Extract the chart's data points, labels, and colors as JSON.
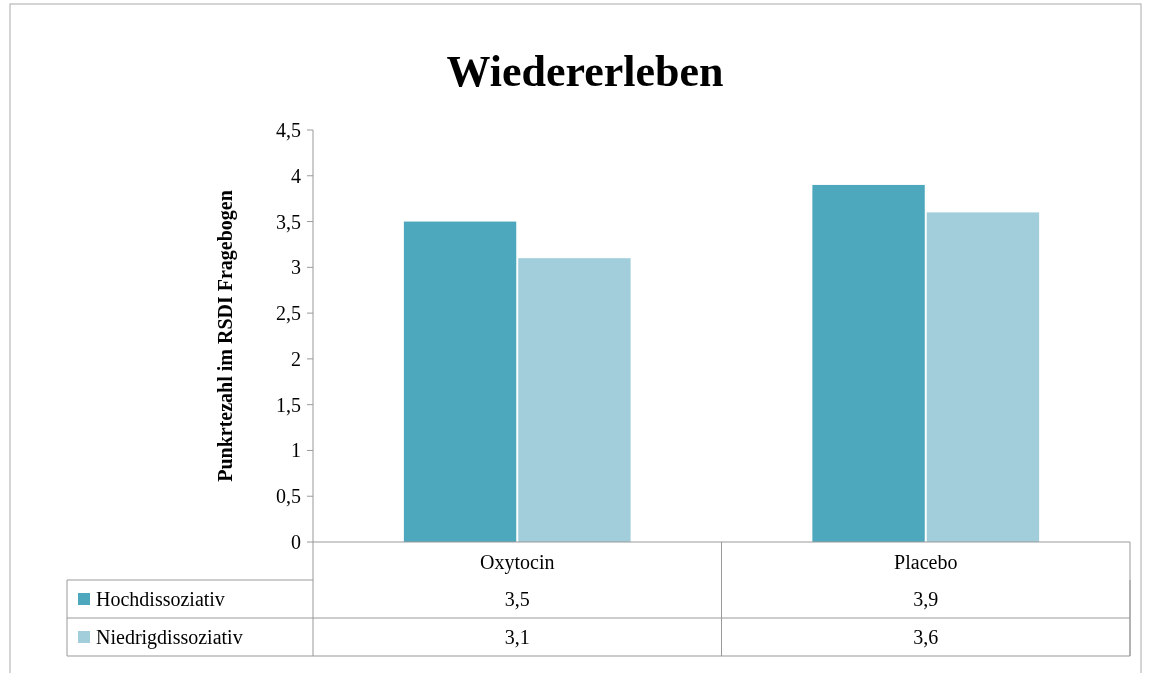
{
  "chart_data": {
    "type": "bar",
    "title": "Wiedererleben",
    "ylabel": "Punkrtezahl im RSDI Fragebogen",
    "categories": [
      "Oxytocin",
      "Placebo"
    ],
    "series": [
      {
        "name": "Hochdissoziativ",
        "color": "#4ea8bd",
        "values": [
          3.5,
          3.9
        ],
        "value_labels": [
          "3,5",
          "3,9"
        ]
      },
      {
        "name": "Niedrigdissoziativ",
        "color": "#a2cedc",
        "values": [
          3.1,
          3.6
        ],
        "value_labels": [
          "3,1",
          "3,6"
        ]
      }
    ],
    "ylim": [
      0,
      4.5
    ],
    "yticks": [
      0,
      {
        "value": 0.5,
        "label": "0,5"
      },
      1,
      {
        "value": 1.5,
        "label": "1,5"
      },
      2,
      {
        "value": 2.5,
        "label": "2,5"
      },
      3,
      {
        "value": 3.5,
        "label": "3,5"
      },
      4,
      {
        "value": 4.5,
        "label": "4,5"
      }
    ],
    "grid": false,
    "legend": "bottom left"
  }
}
